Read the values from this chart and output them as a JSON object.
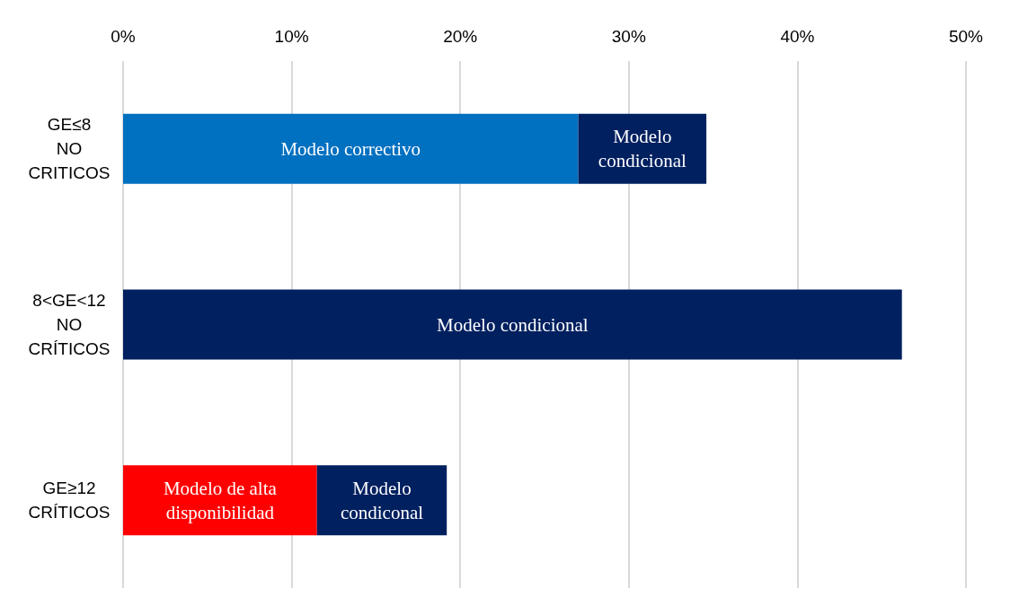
{
  "chart_data": {
    "type": "bar",
    "orientation": "horizontal",
    "stacked": true,
    "categories": [
      "GE≤8\nNO\nCRITICOS",
      "8<GE<12\nNO\nCRÍTICOS",
      "GE≥12\nCRÍTICOS"
    ],
    "series": [
      {
        "colors": [
          "#0070c0",
          null,
          "#ff0000"
        ],
        "values": [
          27,
          null,
          11.5
        ],
        "value_labels": [
          "Modelo correctivo",
          null,
          "Modelo de alta\ndisponibilidad"
        ]
      },
      {
        "color": "#002060",
        "values": [
          7.6,
          46.2,
          7.7
        ],
        "value_labels": [
          "Modelo\ncondicional",
          "Modelo condicional",
          "Modelo\ncondiconal"
        ]
      }
    ],
    "xlim": [
      0,
      50
    ],
    "xticks": [
      {
        "value": 0,
        "label": "0%"
      },
      {
        "value": 10,
        "label": "10%"
      },
      {
        "value": 20,
        "label": "20%"
      },
      {
        "value": 30,
        "label": "30%"
      },
      {
        "value": 40,
        "label": "40%"
      },
      {
        "value": 50,
        "label": "50%"
      }
    ],
    "grid": "x"
  }
}
